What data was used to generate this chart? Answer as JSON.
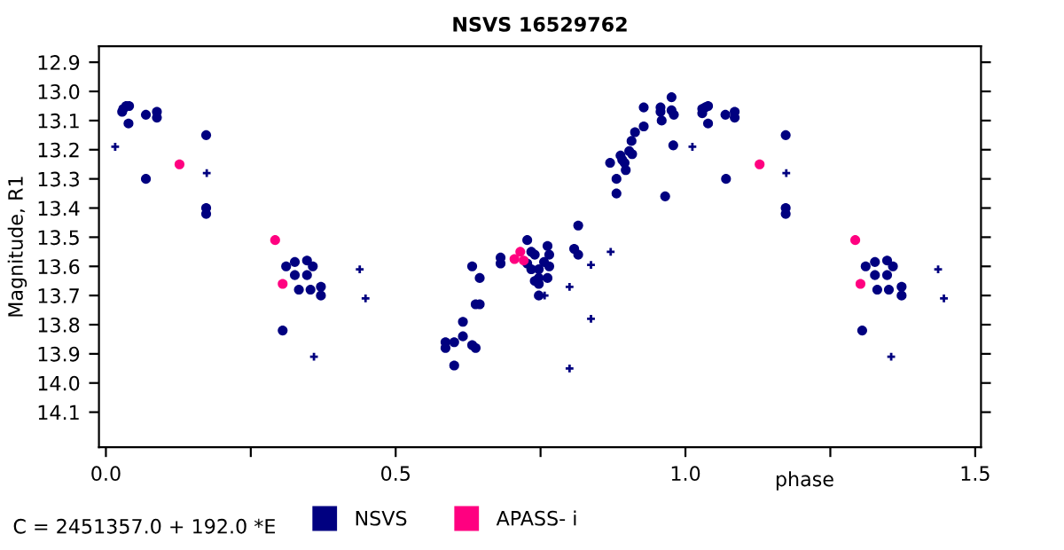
{
  "chart_data": {
    "type": "scatter",
    "title": "NSVS 16529762",
    "xlabel": "phase",
    "ylabel": "Magnitude, R1",
    "annotations": [
      "C = 2451357.0 + 192.0 *E"
    ],
    "xlim": [
      -0.012,
      1.51
    ],
    "ylim": [
      14.22,
      12.845
    ],
    "xticks": [
      {
        "value": 0.0,
        "label": "0.0"
      },
      {
        "value": 0.25,
        "label": null
      },
      {
        "value": 0.5,
        "label": "0.5"
      },
      {
        "value": 0.75,
        "label": null
      },
      {
        "value": 1.0,
        "label": "1.0"
      },
      {
        "value": 1.25,
        "label": null
      },
      {
        "value": 1.5,
        "label": "1.5"
      }
    ],
    "yticks": [
      12.9,
      {
        "value": 13,
        "label": "13.0"
      },
      13.1,
      13.2,
      13.3,
      13.4,
      13.5,
      13.6,
      13.7,
      13.8,
      13.9,
      {
        "value": 14,
        "label": "14.0"
      },
      14.1
    ],
    "grid": false,
    "legend": "bottom",
    "series": [
      {
        "name": "NSVS",
        "color": "#000080",
        "marker": "circle",
        "x": [
          0.028,
          0.03,
          0.035,
          0.04,
          0.039,
          0.069,
          0.088,
          0.088,
          0.069,
          0.173,
          0.173,
          0.173,
          0.305,
          0.311,
          0.326,
          0.326,
          0.333,
          0.347,
          0.347,
          0.357,
          0.353,
          0.371,
          0.371,
          0.586,
          0.586,
          0.601,
          0.601,
          0.616,
          0.616,
          0.632,
          0.638,
          0.632,
          0.645,
          0.638,
          0.645,
          0.681,
          0.681,
          0.727,
          0.727,
          0.734,
          0.74,
          0.734,
          0.747,
          0.74,
          0.747,
          0.747,
          0.747,
          0.756,
          0.762,
          0.765,
          0.765,
          0.762,
          0.808,
          0.815,
          0.815,
          0.87,
          0.881,
          0.881,
          0.888,
          0.891,
          0.895,
          0.897,
          0.903,
          0.908,
          0.907,
          0.913,
          0.928,
          0.928,
          0.957,
          0.957,
          0.959,
          0.965,
          0.976,
          0.976,
          0.98,
          0.979,
          1.029,
          1.029,
          1.034,
          1.039,
          1.039,
          1.069,
          1.085,
          1.085,
          1.07,
          1.173,
          1.173,
          1.173,
          1.305,
          1.311,
          1.327,
          1.327,
          1.331,
          1.348,
          1.348,
          1.358,
          1.351,
          1.373,
          1.373
        ],
        "values": [
          13.07,
          13.06,
          13.05,
          13.05,
          13.11,
          13.08,
          13.07,
          13.09,
          13.3,
          13.15,
          13.4,
          13.42,
          13.82,
          13.6,
          13.585,
          13.63,
          13.68,
          13.58,
          13.63,
          13.6,
          13.68,
          13.67,
          13.7,
          13.86,
          13.88,
          13.86,
          13.94,
          13.79,
          13.84,
          13.87,
          13.88,
          13.6,
          13.64,
          13.73,
          13.73,
          13.57,
          13.59,
          13.51,
          13.59,
          13.55,
          13.56,
          13.61,
          13.61,
          13.65,
          13.64,
          13.66,
          13.7,
          13.585,
          13.53,
          13.56,
          13.6,
          13.64,
          13.54,
          13.46,
          13.56,
          13.245,
          13.3,
          13.35,
          13.22,
          13.235,
          13.245,
          13.27,
          13.205,
          13.215,
          13.17,
          13.14,
          13.055,
          13.12,
          13.055,
          13.07,
          13.1,
          13.36,
          13.02,
          13.065,
          13.08,
          13.185,
          13.06,
          13.075,
          13.055,
          13.05,
          13.11,
          13.08,
          13.07,
          13.09,
          13.3,
          13.15,
          13.4,
          13.42,
          13.82,
          13.6,
          13.585,
          13.63,
          13.68,
          13.58,
          13.63,
          13.6,
          13.68,
          13.67,
          13.7
        ]
      },
      {
        "name": "APASS- i",
        "color": "#ff0080",
        "marker": "circle",
        "x": [
          0.127,
          0.292,
          0.305,
          0.705,
          0.715,
          0.721,
          1.128,
          1.293,
          1.302
        ],
        "values": [
          13.25,
          13.51,
          13.66,
          13.575,
          13.55,
          13.58,
          13.25,
          13.51,
          13.66
        ]
      },
      {
        "color": "#000080",
        "marker": "cross",
        "x": [
          0.016,
          0.174,
          0.359,
          0.438,
          0.448,
          0.757,
          0.8,
          0.8,
          0.837,
          0.837,
          0.871,
          1.012,
          1.174,
          1.355,
          1.436,
          1.446
        ],
        "values": [
          13.19,
          13.28,
          13.91,
          13.61,
          13.71,
          13.7,
          13.67,
          13.95,
          13.595,
          13.78,
          13.55,
          13.19,
          13.28,
          13.91,
          13.61,
          13.71
        ]
      }
    ]
  }
}
